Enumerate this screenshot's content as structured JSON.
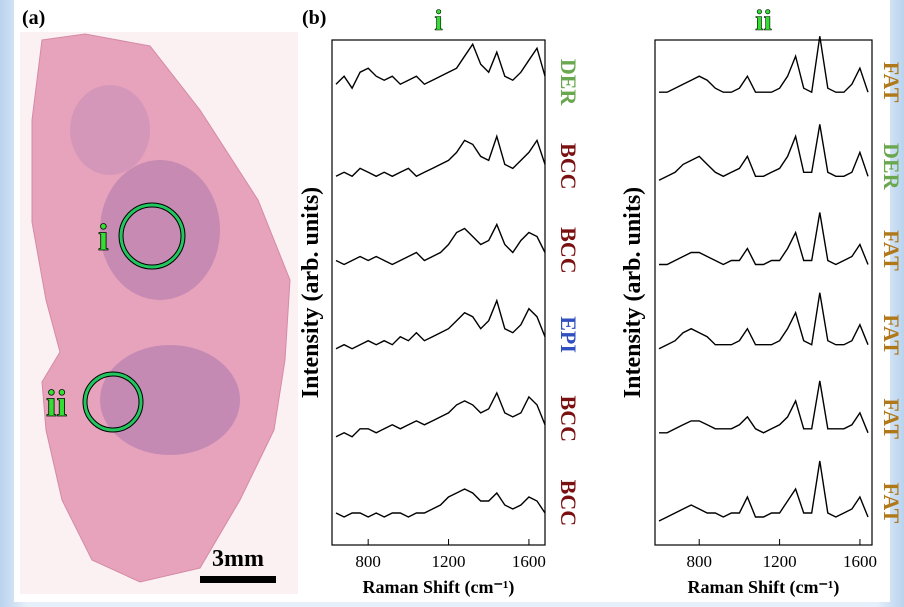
{
  "panel_a": {
    "label": "(a)",
    "markers": [
      "i",
      "ii"
    ],
    "scale_bar": "3mm"
  },
  "panel_b_label": "(b)",
  "chart_data": [
    {
      "type": "line",
      "title": "i",
      "xlabel": "Raman Shift (cm⁻¹)",
      "ylabel": "Intensity (arb. units)",
      "xlim": [
        620,
        1680
      ],
      "xticks": [
        800,
        1200,
        1600
      ],
      "ylim": [
        0,
        1
      ],
      "x": [
        640,
        680,
        720,
        760,
        800,
        840,
        880,
        920,
        960,
        1000,
        1040,
        1080,
        1120,
        1160,
        1200,
        1240,
        1280,
        1320,
        1360,
        1400,
        1440,
        1480,
        1520,
        1560,
        1600,
        1640,
        1680
      ],
      "series": [
        {
          "name": "DER",
          "color": "#6aa84f",
          "values": [
            0.4,
            0.5,
            0.35,
            0.55,
            0.6,
            0.5,
            0.45,
            0.5,
            0.4,
            0.45,
            0.5,
            0.4,
            0.45,
            0.5,
            0.55,
            0.6,
            0.75,
            0.9,
            0.65,
            0.55,
            0.8,
            0.5,
            0.45,
            0.55,
            0.7,
            0.85,
            0.5
          ]
        },
        {
          "name": "BCC",
          "color": "#7a1010",
          "values": [
            0.3,
            0.35,
            0.3,
            0.4,
            0.35,
            0.3,
            0.35,
            0.3,
            0.35,
            0.4,
            0.3,
            0.35,
            0.4,
            0.45,
            0.5,
            0.6,
            0.75,
            0.7,
            0.55,
            0.5,
            0.8,
            0.45,
            0.4,
            0.5,
            0.6,
            0.75,
            0.45
          ]
        },
        {
          "name": "BCC",
          "color": "#7a1010",
          "values": [
            0.3,
            0.25,
            0.3,
            0.35,
            0.3,
            0.35,
            0.3,
            0.25,
            0.3,
            0.35,
            0.4,
            0.3,
            0.35,
            0.4,
            0.5,
            0.65,
            0.7,
            0.6,
            0.5,
            0.55,
            0.75,
            0.5,
            0.4,
            0.55,
            0.65,
            0.6,
            0.4
          ]
        },
        {
          "name": "EPI",
          "color": "#3050c0",
          "values": [
            0.25,
            0.3,
            0.25,
            0.3,
            0.35,
            0.3,
            0.35,
            0.3,
            0.4,
            0.35,
            0.45,
            0.35,
            0.4,
            0.45,
            0.5,
            0.6,
            0.7,
            0.65,
            0.5,
            0.6,
            0.85,
            0.5,
            0.45,
            0.55,
            0.75,
            0.65,
            0.4
          ]
        },
        {
          "name": "BCC",
          "color": "#7a1010",
          "values": [
            0.2,
            0.25,
            0.2,
            0.3,
            0.3,
            0.25,
            0.3,
            0.35,
            0.3,
            0.35,
            0.4,
            0.35,
            0.4,
            0.45,
            0.5,
            0.6,
            0.65,
            0.6,
            0.5,
            0.55,
            0.75,
            0.5,
            0.45,
            0.5,
            0.7,
            0.6,
            0.35
          ]
        },
        {
          "name": "BCC",
          "color": "#7a1010",
          "values": [
            0.3,
            0.25,
            0.3,
            0.3,
            0.25,
            0.3,
            0.25,
            0.3,
            0.3,
            0.25,
            0.3,
            0.3,
            0.35,
            0.4,
            0.5,
            0.55,
            0.6,
            0.55,
            0.45,
            0.45,
            0.55,
            0.4,
            0.35,
            0.4,
            0.5,
            0.45,
            0.3
          ]
        }
      ]
    },
    {
      "type": "line",
      "title": "ii",
      "xlabel": "Raman Shift (cm⁻¹)",
      "ylabel": "Intensity (arb. units)",
      "xlim": [
        580,
        1660
      ],
      "xticks": [
        800,
        1200,
        1600
      ],
      "ylim": [
        0,
        1
      ],
      "x": [
        600,
        640,
        680,
        720,
        760,
        800,
        840,
        880,
        920,
        960,
        1000,
        1040,
        1080,
        1120,
        1160,
        1200,
        1240,
        1280,
        1320,
        1360,
        1400,
        1440,
        1480,
        1520,
        1560,
        1600,
        1640
      ],
      "series": [
        {
          "name": "FAT",
          "color": "#b07818",
          "values": [
            0.3,
            0.3,
            0.35,
            0.4,
            0.45,
            0.5,
            0.45,
            0.35,
            0.3,
            0.3,
            0.35,
            0.5,
            0.3,
            0.3,
            0.3,
            0.35,
            0.5,
            0.75,
            0.35,
            0.3,
            1.0,
            0.35,
            0.3,
            0.3,
            0.4,
            0.6,
            0.3
          ]
        },
        {
          "name": "DER",
          "color": "#6aa84f",
          "values": [
            0.25,
            0.3,
            0.35,
            0.45,
            0.5,
            0.55,
            0.45,
            0.35,
            0.3,
            0.35,
            0.4,
            0.55,
            0.3,
            0.3,
            0.35,
            0.4,
            0.55,
            0.8,
            0.35,
            0.35,
            0.95,
            0.35,
            0.3,
            0.3,
            0.35,
            0.6,
            0.3
          ]
        },
        {
          "name": "FAT",
          "color": "#b07818",
          "values": [
            0.25,
            0.25,
            0.3,
            0.35,
            0.4,
            0.4,
            0.35,
            0.3,
            0.25,
            0.3,
            0.3,
            0.45,
            0.25,
            0.25,
            0.3,
            0.3,
            0.45,
            0.65,
            0.3,
            0.3,
            0.9,
            0.3,
            0.25,
            0.3,
            0.35,
            0.5,
            0.25
          ]
        },
        {
          "name": "FAT",
          "color": "#b07818",
          "values": [
            0.25,
            0.3,
            0.35,
            0.45,
            0.5,
            0.45,
            0.4,
            0.3,
            0.3,
            0.3,
            0.35,
            0.5,
            0.3,
            0.3,
            0.3,
            0.35,
            0.5,
            0.7,
            0.35,
            0.3,
            0.95,
            0.35,
            0.3,
            0.3,
            0.35,
            0.55,
            0.3
          ]
        },
        {
          "name": "FAT",
          "color": "#b07818",
          "values": [
            0.25,
            0.25,
            0.3,
            0.35,
            0.4,
            0.4,
            0.35,
            0.3,
            0.3,
            0.3,
            0.35,
            0.45,
            0.3,
            0.25,
            0.3,
            0.35,
            0.45,
            0.65,
            0.3,
            0.3,
            0.9,
            0.3,
            0.3,
            0.3,
            0.35,
            0.5,
            0.25
          ]
        },
        {
          "name": "FAT",
          "color": "#b07818",
          "values": [
            0.2,
            0.25,
            0.3,
            0.35,
            0.4,
            0.35,
            0.3,
            0.3,
            0.25,
            0.3,
            0.3,
            0.5,
            0.25,
            0.25,
            0.3,
            0.3,
            0.45,
            0.6,
            0.3,
            0.3,
            0.95,
            0.3,
            0.25,
            0.3,
            0.35,
            0.5,
            0.25
          ]
        }
      ]
    }
  ]
}
